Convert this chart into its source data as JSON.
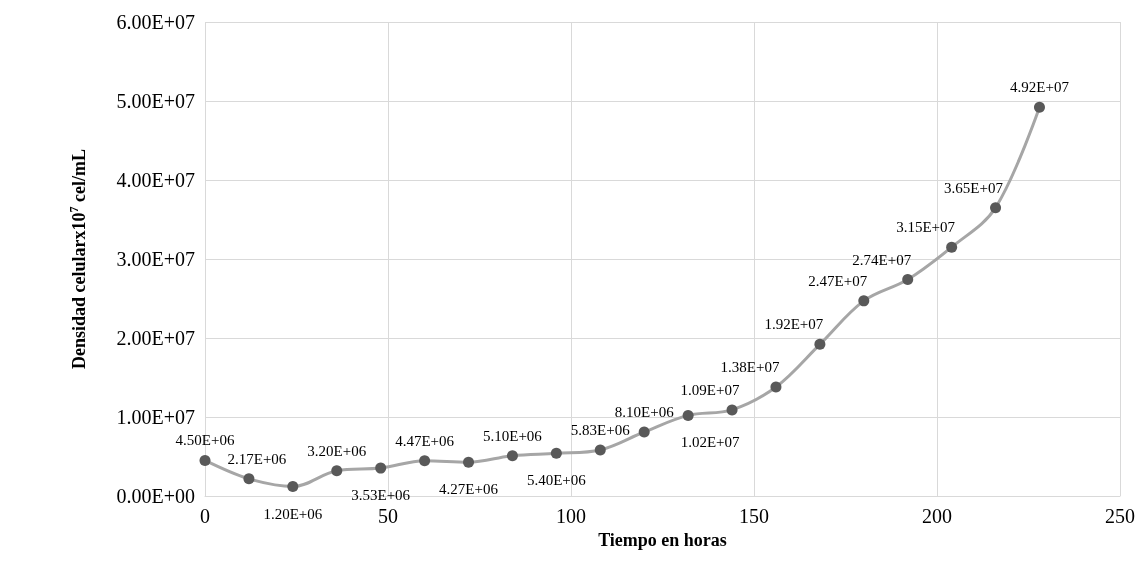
{
  "chart_data": {
    "type": "line",
    "xlabel": "Tiempo en horas",
    "ylabel": "Densidad celularx10$^{7}$ cel/mL",
    "x": [
      0,
      12,
      24,
      36,
      48,
      60,
      72,
      84,
      96,
      108,
      120,
      132,
      144,
      156,
      168,
      180,
      192,
      204,
      216,
      228
    ],
    "series": [
      {
        "color": "#a6a6a6",
        "values": [
          4500000,
          2170000,
          1200000,
          3200000,
          3530000,
          4470000,
          4270000,
          5100000,
          5400000,
          5830000,
          8100000,
          10200000,
          10900000,
          13800000,
          19200000,
          24700000,
          27400000,
          31500000,
          36500000,
          49200000
        ],
        "value_labels": [
          "4.50E+06",
          "2.17E+06",
          "1.20E+06",
          "3.20E+06",
          "3.53E+06",
          "4.47E+06",
          "4.27E+06",
          "5.10E+06",
          "5.40E+06",
          "5.83E+06",
          "8.10E+06",
          "1.02E+07",
          "1.09E+07",
          "1.38E+07",
          "1.92E+07",
          "2.47E+07",
          "2.74E+07",
          "3.15E+07",
          "3.65E+07",
          "4.92E+07"
        ]
      }
    ],
    "xlim": [
      0,
      250
    ],
    "xticks": [
      0,
      50,
      100,
      150,
      200,
      250
    ],
    "ylim": [
      0,
      60000000
    ],
    "yticks": [
      {
        "value": 0,
        "label": "0.00E+00"
      },
      {
        "value": 10000000,
        "label": "1.00E+07"
      },
      {
        "value": 20000000,
        "label": "2.00E+07"
      },
      {
        "value": 30000000,
        "label": "3.00E+07"
      },
      {
        "value": 40000000,
        "label": "4.00E+07"
      },
      {
        "value": 50000000,
        "label": "5.00E+07"
      },
      {
        "value": 60000000,
        "label": "6.00E+07"
      }
    ],
    "grid": true,
    "marker": "circle",
    "line_style": "solid"
  }
}
